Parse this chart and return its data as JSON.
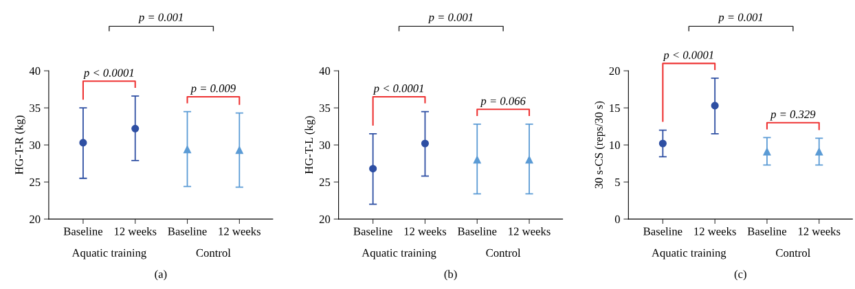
{
  "chart_data": [
    {
      "type": "scatter",
      "categories": [
        "Baseline",
        "12 weeks",
        "Baseline",
        "12 weeks"
      ],
      "ylabel": "HG-T-R (kg)",
      "xlabel": "(a)",
      "ylim": [
        20,
        40
      ],
      "yticks": [
        20,
        25,
        30,
        35,
        40
      ],
      "grid": false,
      "legend": false,
      "series": [
        {
          "color": "#2e4fa3",
          "marker": "circle",
          "values": [
            30.3,
            32.2,
            null,
            null
          ],
          "errors": [
            [
              25.5,
              35.0
            ],
            [
              27.9,
              36.6
            ],
            null,
            null
          ]
        },
        {
          "color": "#5b9bd5",
          "marker": "triangle",
          "values": [
            null,
            null,
            29.4,
            29.3
          ],
          "errors": [
            null,
            null,
            [
              24.4,
              34.5
            ],
            [
              24.3,
              34.3
            ]
          ]
        }
      ],
      "annotations": [
        "p = 0.001",
        "p < 0.0001",
        "p = 0.009",
        "Aquatic training",
        "Control"
      ]
    },
    {
      "type": "scatter",
      "categories": [
        "Baseline",
        "12 weeks",
        "Baseline",
        "12 weeks"
      ],
      "ylabel": "HG-T-L (kg)",
      "xlabel": "(b)",
      "ylim": [
        20,
        40
      ],
      "yticks": [
        20,
        25,
        30,
        35,
        40
      ],
      "grid": false,
      "legend": false,
      "series": [
        {
          "color": "#2e4fa3",
          "marker": "circle",
          "values": [
            26.8,
            30.2,
            null,
            null
          ],
          "errors": [
            [
              22.0,
              31.5
            ],
            [
              25.8,
              34.5
            ],
            null,
            null
          ]
        },
        {
          "color": "#5b9bd5",
          "marker": "triangle",
          "values": [
            null,
            null,
            28.0,
            28.0
          ],
          "errors": [
            null,
            null,
            [
              23.4,
              32.8
            ],
            [
              23.4,
              32.8
            ]
          ]
        }
      ],
      "annotations": [
        "p = 0.001",
        "p < 0.0001",
        "p = 0.066",
        "Aquatic training",
        "Control"
      ]
    },
    {
      "type": "scatter",
      "categories": [
        "Baseline",
        "12 weeks",
        "Baseline",
        "12 weeks"
      ],
      "ylabel": "30 s-CS (reps/30 s)",
      "xlabel": "(c)",
      "ylim": [
        0,
        20
      ],
      "yticks": [
        0,
        5,
        10,
        15,
        20
      ],
      "grid": false,
      "legend": false,
      "series": [
        {
          "color": "#2e4fa3",
          "marker": "circle",
          "values": [
            10.2,
            15.3,
            null,
            null
          ],
          "errors": [
            [
              8.4,
              12.0
            ],
            [
              11.5,
              19.0
            ],
            null,
            null
          ]
        },
        {
          "color": "#5b9bd5",
          "marker": "triangle",
          "values": [
            null,
            null,
            9.1,
            9.1
          ],
          "errors": [
            null,
            null,
            [
              7.3,
              11.0
            ],
            [
              7.3,
              10.9
            ]
          ]
        }
      ],
      "annotations": [
        "p = 0.001",
        "p < 0.0001",
        "p = 0.329",
        "Aquatic training",
        "Control"
      ]
    }
  ]
}
